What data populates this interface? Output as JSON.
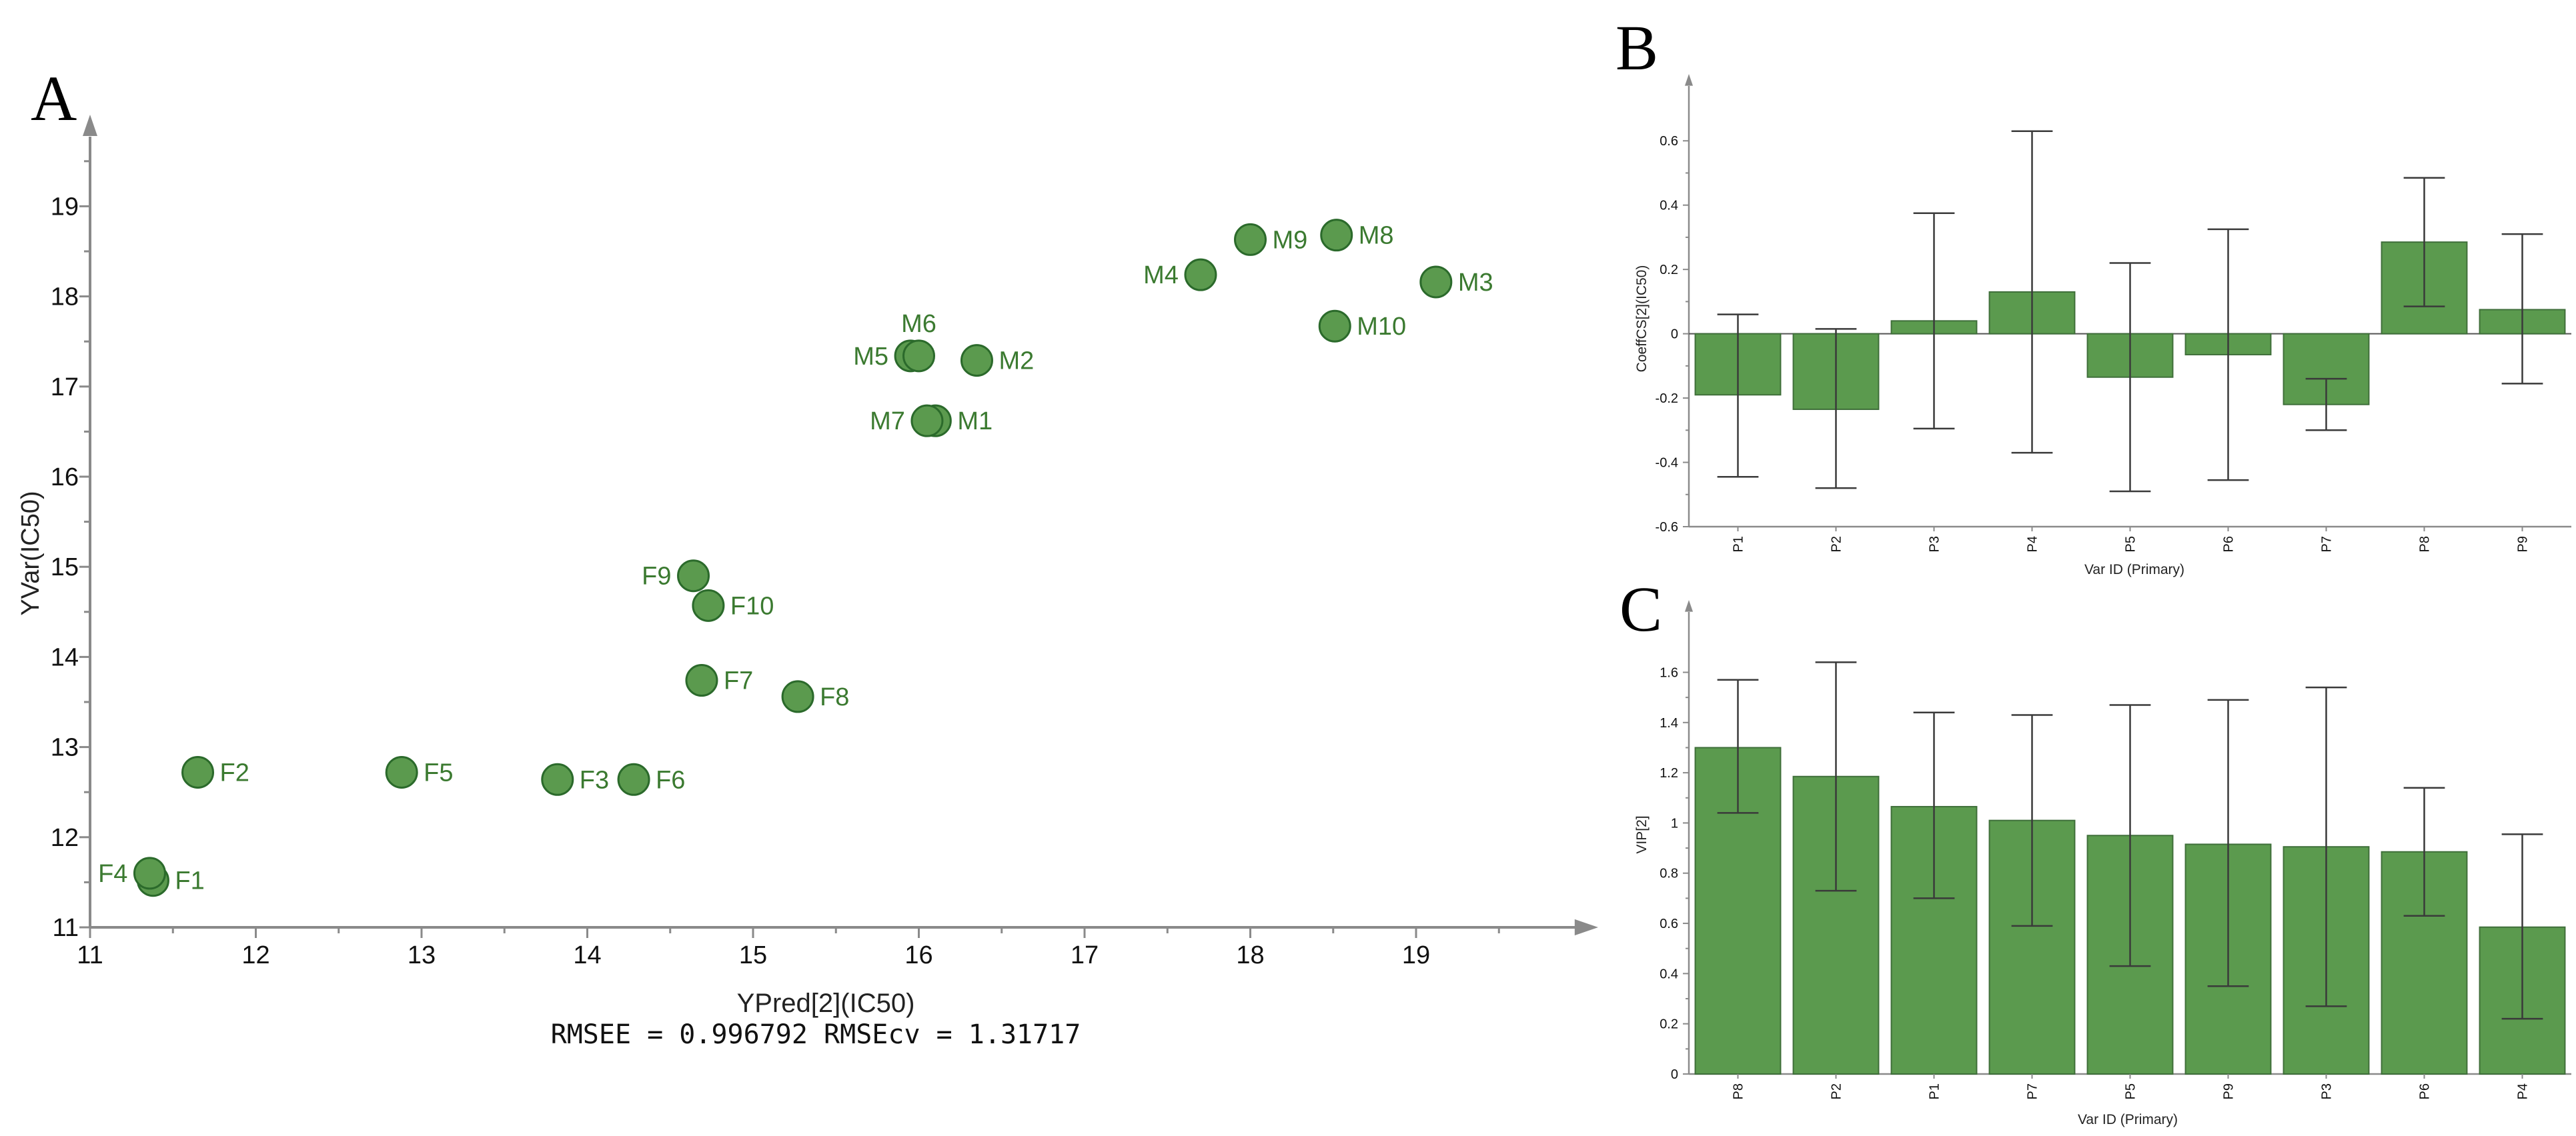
{
  "figure": {
    "panel_labels": {
      "a": "A",
      "b": "B",
      "c": "C"
    },
    "colors": {
      "marker_fill": "#5b9a4e",
      "marker_edge": "#2b6a2b",
      "label_text": "#3b7a30",
      "bar_fill": "#5b9a4e",
      "axis": "#8a8a8a"
    }
  },
  "chart_data": [
    {
      "type": "scatter",
      "panel": "A",
      "xlabel": "YPred[2](IC50)",
      "ylabel": "YVar(IC50)",
      "caption": "RMSEE = 0.996792 RMSEcv = 1.31717",
      "xlim": [
        11,
        19.8
      ],
      "ylim": [
        11,
        19.8
      ],
      "xticks": [
        11,
        12,
        13,
        14,
        15,
        16,
        17,
        18,
        19
      ],
      "yticks": [
        11,
        12,
        13,
        14,
        15,
        16,
        17,
        18,
        19
      ],
      "points": [
        {
          "label": "F1",
          "x": 11.38,
          "y": 11.52,
          "label_side": "right"
        },
        {
          "label": "F2",
          "x": 11.65,
          "y": 12.72,
          "label_side": "right"
        },
        {
          "label": "F3",
          "x": 13.82,
          "y": 12.64,
          "label_side": "right"
        },
        {
          "label": "F4",
          "x": 11.36,
          "y": 11.6,
          "label_side": "left"
        },
        {
          "label": "F5",
          "x": 12.88,
          "y": 12.72,
          "label_side": "right"
        },
        {
          "label": "F6",
          "x": 14.28,
          "y": 12.64,
          "label_side": "right"
        },
        {
          "label": "F7",
          "x": 14.69,
          "y": 13.74,
          "label_side": "right"
        },
        {
          "label": "F8",
          "x": 15.27,
          "y": 13.56,
          "label_side": "right"
        },
        {
          "label": "F9",
          "x": 14.64,
          "y": 14.9,
          "label_side": "left"
        },
        {
          "label": "F10",
          "x": 14.73,
          "y": 14.57,
          "label_side": "right"
        },
        {
          "label": "M1",
          "x": 16.1,
          "y": 16.62,
          "label_side": "right"
        },
        {
          "label": "M2",
          "x": 16.35,
          "y": 17.29,
          "label_side": "right"
        },
        {
          "label": "M3",
          "x": 19.12,
          "y": 18.16,
          "label_side": "right"
        },
        {
          "label": "M4",
          "x": 17.7,
          "y": 18.24,
          "label_side": "left"
        },
        {
          "label": "M5",
          "x": 15.95,
          "y": 17.34,
          "label_side": "left"
        },
        {
          "label": "M6",
          "x": 16.0,
          "y": 17.34,
          "label_side": "above"
        },
        {
          "label": "M7",
          "x": 16.05,
          "y": 16.62,
          "label_side": "left"
        },
        {
          "label": "M8",
          "x": 18.52,
          "y": 18.68,
          "label_side": "right"
        },
        {
          "label": "M9",
          "x": 18.0,
          "y": 18.63,
          "label_side": "right"
        },
        {
          "label": "M10",
          "x": 18.51,
          "y": 17.67,
          "label_side": "right"
        }
      ]
    },
    {
      "type": "bar",
      "panel": "B",
      "xlabel": "Var ID (Primary)",
      "ylabel": "CoeffCS[2](IC50)",
      "categories": [
        "P1",
        "P2",
        "P3",
        "P4",
        "P5",
        "P6",
        "P7",
        "P8",
        "P9"
      ],
      "values": [
        -0.19,
        -0.235,
        0.04,
        0.13,
        -0.135,
        -0.065,
        -0.22,
        0.285,
        0.075
      ],
      "error_low": [
        -0.445,
        -0.48,
        -0.295,
        -0.37,
        -0.49,
        -0.455,
        -0.3,
        0.085,
        -0.155
      ],
      "error_high": [
        0.06,
        0.015,
        0.375,
        0.63,
        0.22,
        0.325,
        -0.14,
        0.485,
        0.31
      ],
      "ylim": [
        -0.6,
        0.7
      ],
      "yticks": [
        -0.6,
        -0.4,
        -0.2,
        0,
        0.2,
        0.4,
        0.6
      ],
      "ytick_labels": [
        "-0.6",
        "-0.4",
        "-0.2",
        "0",
        "0.2",
        "0.4",
        "0.6"
      ]
    },
    {
      "type": "bar",
      "panel": "C",
      "xlabel": "Var ID (Primary)",
      "ylabel": "VIP[2]",
      "categories": [
        "P8",
        "P2",
        "P1",
        "P7",
        "P5",
        "P9",
        "P3",
        "P6",
        "P4"
      ],
      "values": [
        1.3,
        1.185,
        1.065,
        1.01,
        0.95,
        0.915,
        0.905,
        0.885,
        0.585
      ],
      "error_low": [
        1.04,
        0.73,
        0.7,
        0.59,
        0.43,
        0.35,
        0.27,
        0.63,
        0.22
      ],
      "error_high": [
        1.57,
        1.64,
        1.44,
        1.43,
        1.47,
        1.49,
        1.54,
        1.14,
        0.955
      ],
      "ylim": [
        0,
        1.75
      ],
      "yticks": [
        0,
        0.2,
        0.4,
        0.6,
        0.8,
        1,
        1.2,
        1.4,
        1.6
      ],
      "ytick_labels": [
        "0",
        "0.2",
        "0.4",
        "0.6",
        "0.8",
        "1",
        "1.2",
        "1.4",
        "1.6"
      ]
    }
  ]
}
